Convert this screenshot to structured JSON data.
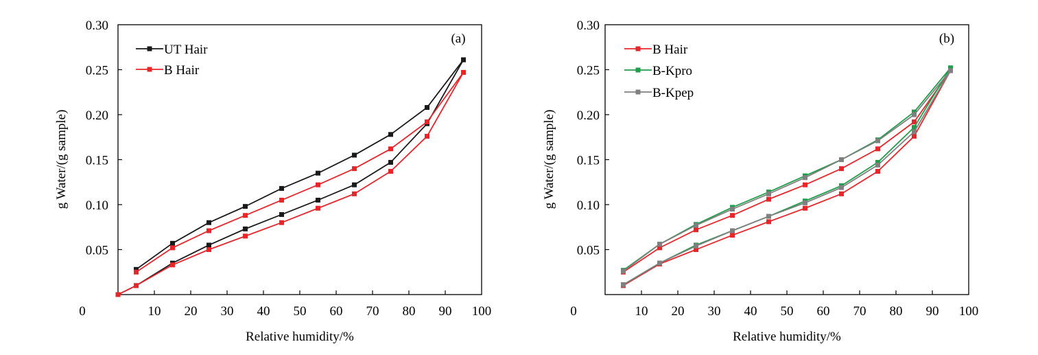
{
  "colors": {
    "ut_hair": "#1a1a1a",
    "b_hair": "#e8262a",
    "b_kpro": "#1f9e4a",
    "b_kpep": "#808080"
  },
  "chart_data": [
    {
      "type": "line",
      "panel_label": "(a)",
      "xlabel": "Relative humidity/%",
      "ylabel": "g Water/(g sample)",
      "xlim": [
        0,
        100
      ],
      "ylim": [
        0,
        0.3
      ],
      "x_ticks": [
        "0",
        "10",
        "20",
        "30",
        "40",
        "50",
        "60",
        "70",
        "80",
        "90",
        "100"
      ],
      "y_ticks": [
        "0",
        "0.05",
        "0.10",
        "0.15",
        "0.20",
        "0.25",
        "0.30"
      ],
      "grid": false,
      "legend_position": "top-left",
      "series": [
        {
          "name": "UT Hair",
          "color": "#1a1a1a",
          "segments": [
            {
              "x": [
                0,
                5,
                15,
                25,
                35,
                45,
                55,
                65,
                75,
                85,
                95
              ],
              "y": [
                0.0,
                0.01,
                0.035,
                0.055,
                0.073,
                0.089,
                0.105,
                0.122,
                0.147,
                0.19,
                0.261
              ]
            },
            {
              "x": [
                5,
                15,
                25,
                35,
                45,
                55,
                65,
                75,
                85,
                95
              ],
              "y": [
                0.028,
                0.057,
                0.08,
                0.098,
                0.118,
                0.135,
                0.155,
                0.178,
                0.208,
                0.261
              ]
            }
          ]
        },
        {
          "name": "B Hair",
          "color": "#e8262a",
          "segments": [
            {
              "x": [
                0,
                5,
                15,
                25,
                35,
                45,
                55,
                65,
                75,
                85,
                95
              ],
              "y": [
                0.0,
                0.01,
                0.033,
                0.05,
                0.065,
                0.08,
                0.096,
                0.112,
                0.137,
                0.176,
                0.247
              ]
            },
            {
              "x": [
                5,
                15,
                25,
                35,
                45,
                55,
                65,
                75,
                85,
                95
              ],
              "y": [
                0.025,
                0.052,
                0.071,
                0.088,
                0.105,
                0.122,
                0.14,
                0.162,
                0.192,
                0.247
              ]
            }
          ]
        }
      ]
    },
    {
      "type": "line",
      "panel_label": "(b)",
      "xlabel": "Relative humidity/%",
      "ylabel": "g Water/(g sample)",
      "xlim": [
        0,
        100
      ],
      "ylim": [
        0,
        0.3
      ],
      "x_ticks": [
        "0",
        "10",
        "20",
        "30",
        "40",
        "50",
        "60",
        "70",
        "80",
        "90",
        "100"
      ],
      "y_ticks": [
        "0",
        "0.05",
        "0.10",
        "0.15",
        "0.20",
        "0.25",
        "0.30"
      ],
      "grid": false,
      "legend_position": "top-left",
      "series": [
        {
          "name": "B Hair",
          "color": "#e8262a",
          "segments": [
            {
              "x": [
                5,
                15,
                25,
                35,
                45,
                55,
                65,
                75,
                85,
                95
              ],
              "y": [
                0.025,
                0.052,
                0.072,
                0.088,
                0.106,
                0.122,
                0.14,
                0.162,
                0.192,
                0.249
              ]
            },
            {
              "x": [
                5,
                15,
                25,
                35,
                45,
                55,
                65,
                75,
                85,
                95
              ],
              "y": [
                0.01,
                0.034,
                0.05,
                0.066,
                0.081,
                0.096,
                0.112,
                0.137,
                0.176,
                0.249
              ]
            }
          ]
        },
        {
          "name": "B-Kpro",
          "color": "#1f9e4a",
          "segments": [
            {
              "x": [
                5,
                15,
                25,
                35,
                45,
                55,
                65,
                75,
                85,
                95
              ],
              "y": [
                0.027,
                0.056,
                0.078,
                0.097,
                0.114,
                0.132,
                0.15,
                0.172,
                0.203,
                0.252
              ]
            },
            {
              "x": [
                5,
                15,
                25,
                35,
                45,
                55,
                65,
                75,
                85,
                95
              ],
              "y": [
                0.011,
                0.035,
                0.055,
                0.071,
                0.087,
                0.104,
                0.121,
                0.147,
                0.186,
                0.252
              ]
            }
          ]
        },
        {
          "name": "B-Kpep",
          "color": "#808080",
          "segments": [
            {
              "x": [
                5,
                15,
                25,
                35,
                45,
                55,
                65,
                75,
                85,
                95
              ],
              "y": [
                0.026,
                0.056,
                0.077,
                0.095,
                0.112,
                0.13,
                0.15,
                0.171,
                0.2,
                0.249
              ]
            },
            {
              "x": [
                5,
                15,
                25,
                35,
                45,
                55,
                65,
                75,
                85,
                95
              ],
              "y": [
                0.011,
                0.035,
                0.054,
                0.071,
                0.087,
                0.102,
                0.119,
                0.144,
                0.181,
                0.249
              ]
            }
          ]
        }
      ]
    }
  ]
}
